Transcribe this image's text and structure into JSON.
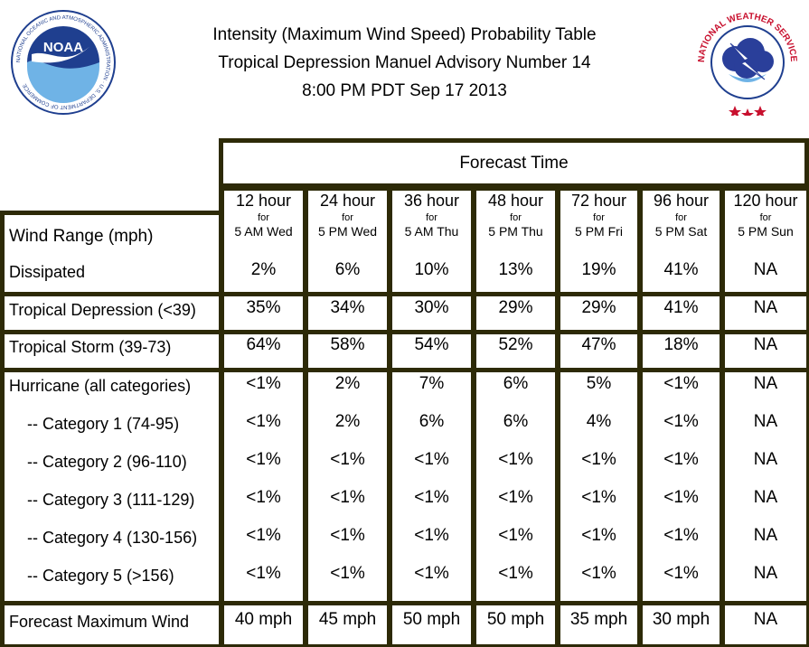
{
  "header": {
    "line1": "Intensity (Maximum Wind Speed) Probability Table",
    "line2": "Tropical Depression Manuel Advisory Number 14",
    "line3": "8:00 PM PDT Sep 17 2013"
  },
  "logos": {
    "noaa_text": "NOAA",
    "noaa_ring": "NATIONAL OCEANIC AND ATMOSPHERIC ADMINISTRATION · U.S. DEPARTMENT OF COMMERCE",
    "nws_ring": "NATIONAL WEATHER SERVICE"
  },
  "table": {
    "group_header": "Forecast Time",
    "row_header_label": "Wind Range (mph)",
    "columns": [
      {
        "hours": "12 hour",
        "for": "for",
        "when": "5 AM Wed"
      },
      {
        "hours": "24 hour",
        "for": "for",
        "when": "5 PM Wed"
      },
      {
        "hours": "36 hour",
        "for": "for",
        "when": "5 AM Thu"
      },
      {
        "hours": "48 hour",
        "for": "for",
        "when": "5 PM Thu"
      },
      {
        "hours": "72 hour",
        "for": "for",
        "when": "5 PM Fri"
      },
      {
        "hours": "96 hour",
        "for": "for",
        "when": "5 PM Sat"
      },
      {
        "hours": "120 hour",
        "for": "for",
        "when": "5 PM Sun"
      }
    ],
    "rows": [
      {
        "label": "Dissipated",
        "values": [
          "2%",
          "6%",
          "10%",
          "13%",
          "19%",
          "41%",
          "NA"
        ]
      },
      {
        "label": "Tropical Depression (<39)",
        "values": [
          "35%",
          "34%",
          "30%",
          "29%",
          "29%",
          "41%",
          "NA"
        ]
      },
      {
        "label": "Tropical Storm (39-73)",
        "values": [
          "64%",
          "58%",
          "54%",
          "52%",
          "47%",
          "18%",
          "NA"
        ]
      },
      {
        "label": "Hurricane (all categories)",
        "values": [
          "<1%",
          "2%",
          "7%",
          "6%",
          "5%",
          "<1%",
          "NA"
        ]
      },
      {
        "label": "-- Category 1 (74-95)",
        "values": [
          "<1%",
          "2%",
          "6%",
          "6%",
          "4%",
          "<1%",
          "NA"
        ]
      },
      {
        "label": "-- Category 2 (96-110)",
        "values": [
          "<1%",
          "<1%",
          "<1%",
          "<1%",
          "<1%",
          "<1%",
          "NA"
        ]
      },
      {
        "label": "-- Category 3 (111-129)",
        "values": [
          "<1%",
          "<1%",
          "<1%",
          "<1%",
          "<1%",
          "<1%",
          "NA"
        ]
      },
      {
        "label": "-- Category 4 (130-156)",
        "values": [
          "<1%",
          "<1%",
          "<1%",
          "<1%",
          "<1%",
          "<1%",
          "NA"
        ]
      },
      {
        "label": "-- Category 5 (>156)",
        "values": [
          "<1%",
          "<1%",
          "<1%",
          "<1%",
          "<1%",
          "<1%",
          "NA"
        ]
      }
    ],
    "max_wind": {
      "label": "Forecast Maximum Wind",
      "values": [
        "40 mph",
        "45 mph",
        "50 mph",
        "50 mph",
        "35 mph",
        "30 mph",
        "NA"
      ]
    }
  },
  "colors": {
    "border": "#2d2a07",
    "noaa_blue": "#1f3f8f",
    "nws_red": "#c8102e"
  }
}
